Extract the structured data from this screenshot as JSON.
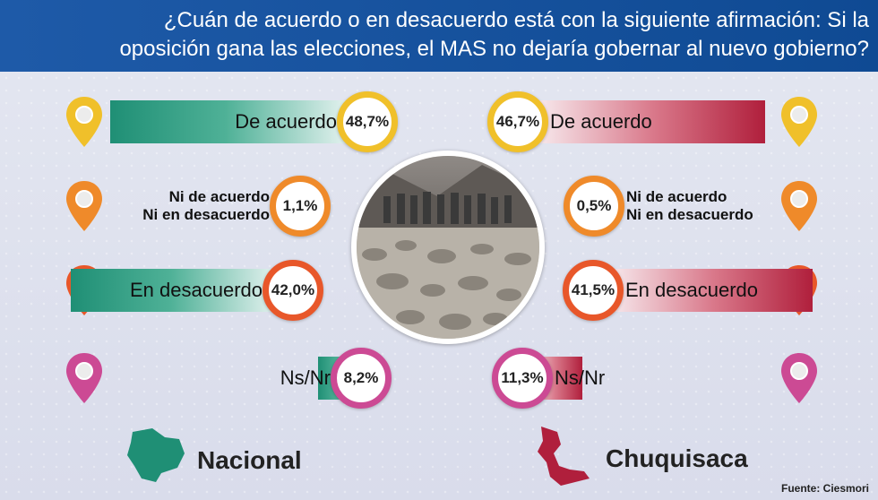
{
  "title": {
    "line1": "¿Cuán de acuerdo o en desacuerdo está con la siguiente afirmación: Si la",
    "line2": "oposición gana las elecciones, el MAS no dejaría gobernar al nuevo gobierno?"
  },
  "source": "Fuente: Ciesmori",
  "colors": {
    "nacional_bar": "#1f8f75",
    "chuquisaca_bar": "#b01f3c",
    "row_accents": [
      "#f0c02a",
      "#ef8a2a",
      "#e8572a",
      "#cc4a94"
    ]
  },
  "icons": [
    "map-pin-icon",
    "bolivia-map-icon",
    "chuquisaca-map-icon",
    "photo-road-blockade"
  ],
  "chart_data": [
    {
      "type": "bar",
      "series_name": "Nacional",
      "categories": [
        "De acuerdo",
        "Ni de acuerdo Ni en desacuerdo",
        "En desacuerdo",
        "Ns/Nr"
      ],
      "label_lines": [
        [
          "De acuerdo"
        ],
        [
          "Ni de acuerdo",
          "Ni en desacuerdo"
        ],
        [
          "En desacuerdo"
        ],
        [
          "Ns/Nr"
        ]
      ],
      "values": [
        48.7,
        1.1,
        42.0,
        8.2
      ],
      "value_labels": [
        "48,7%",
        "1,1%",
        "42,0%",
        "8,2%"
      ]
    },
    {
      "type": "bar",
      "series_name": "Chuquisaca",
      "categories": [
        "De acuerdo",
        "Ni de acuerdo Ni en desacuerdo",
        "En desacuerdo",
        "Ns/Nr"
      ],
      "label_lines": [
        [
          "De acuerdo"
        ],
        [
          "Ni de acuerdo",
          "Ni en desacuerdo"
        ],
        [
          "En desacuerdo"
        ],
        [
          "Ns/Nr"
        ]
      ],
      "values": [
        46.7,
        0.5,
        41.5,
        11.3
      ],
      "value_labels": [
        "46,7%",
        "0,5%",
        "41,5%",
        "11,3%"
      ]
    }
  ]
}
